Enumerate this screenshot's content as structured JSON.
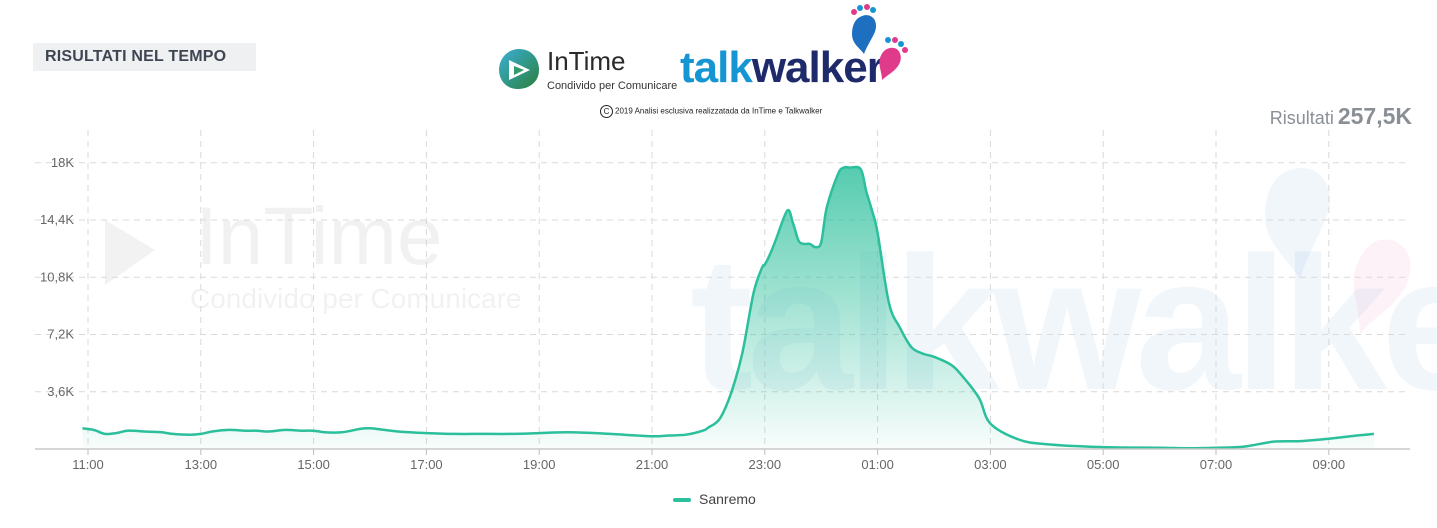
{
  "header": {
    "section_title": "RISULTATI NEL TEMPO"
  },
  "logos": {
    "intime_name": "InTime",
    "intime_tagline": "Condivido per Comunicare",
    "talkwalker_talk": "talk",
    "talkwalker_walker": "walker",
    "copyright": "2019 Analisi esclusiva realizzatada da InTime e Talkwalker"
  },
  "summary": {
    "label": "Risultati",
    "value": "257,5K"
  },
  "watermark": {
    "intime_name": "InTime",
    "intime_tagline": "Condivido per Comunicare",
    "talkwalker": "talkwalker"
  },
  "colors": {
    "series": "#2bbf9b",
    "grid": "#d9d9d9",
    "axis_text": "#666666",
    "brand_blue": "#1596d2",
    "brand_navy": "#1f2a6b"
  },
  "chart_data": {
    "type": "area",
    "title": "",
    "xlabel": "",
    "ylabel": "",
    "x_ticks": [
      "11:00",
      "13:00",
      "15:00",
      "17:00",
      "19:00",
      "21:00",
      "23:00",
      "01:00",
      "03:00",
      "05:00",
      "07:00",
      "09:00"
    ],
    "y_ticks": [
      "3,6K",
      "7,2K",
      "10,8K",
      "14,4K",
      "18K"
    ],
    "ylim": [
      0,
      18900
    ],
    "grid": true,
    "legend_position": "bottom-center",
    "series": [
      {
        "name": "Sanremo",
        "x_hours_from_start": [
          -0.1,
          0.1,
          0.3,
          0.5,
          0.7,
          1,
          1.3,
          1.5,
          1.8,
          2,
          2.2,
          2.5,
          2.8,
          3,
          3.2,
          3.5,
          3.8,
          4,
          4.2,
          4.5,
          4.8,
          5,
          5.5,
          6,
          6.5,
          7,
          7.5,
          8,
          8.5,
          9,
          9.5,
          10,
          10.3,
          10.6,
          10.9,
          11,
          11.2,
          11.4,
          11.6,
          11.8,
          11.95,
          12,
          12.1,
          12.2,
          12.4,
          12.5,
          12.6,
          12.7,
          12.8,
          12.9,
          13,
          13.1,
          13.3,
          13.4,
          13.5,
          13.7,
          13.8,
          13.9,
          14,
          14.2,
          14.4,
          14.6,
          14.8,
          15,
          15.3,
          15.5,
          15.8,
          16,
          16.5,
          17,
          18,
          19,
          19.5,
          20,
          20.5,
          21,
          21.5,
          22,
          22.5,
          22.8
        ],
        "values": [
          1300,
          1200,
          950,
          1000,
          1150,
          1100,
          1050,
          950,
          900,
          950,
          1100,
          1200,
          1150,
          1150,
          1100,
          1200,
          1150,
          1150,
          1050,
          1050,
          1250,
          1300,
          1100,
          1000,
          950,
          950,
          950,
          1000,
          1050,
          1000,
          900,
          800,
          850,
          900,
          1150,
          1350,
          1900,
          3500,
          6000,
          9800,
          11400,
          11600,
          12300,
          13200,
          15000,
          14200,
          13100,
          12900,
          12900,
          12700,
          13000,
          15200,
          17300,
          17700,
          17700,
          17600,
          16200,
          15000,
          13600,
          9200,
          7600,
          6400,
          6000,
          5800,
          5300,
          4600,
          3200,
          1600,
          600,
          300,
          120,
          80,
          50,
          80,
          150,
          450,
          500,
          650,
          850,
          950
        ]
      }
    ]
  },
  "legend": {
    "items": [
      {
        "label": "Sanremo"
      }
    ]
  }
}
